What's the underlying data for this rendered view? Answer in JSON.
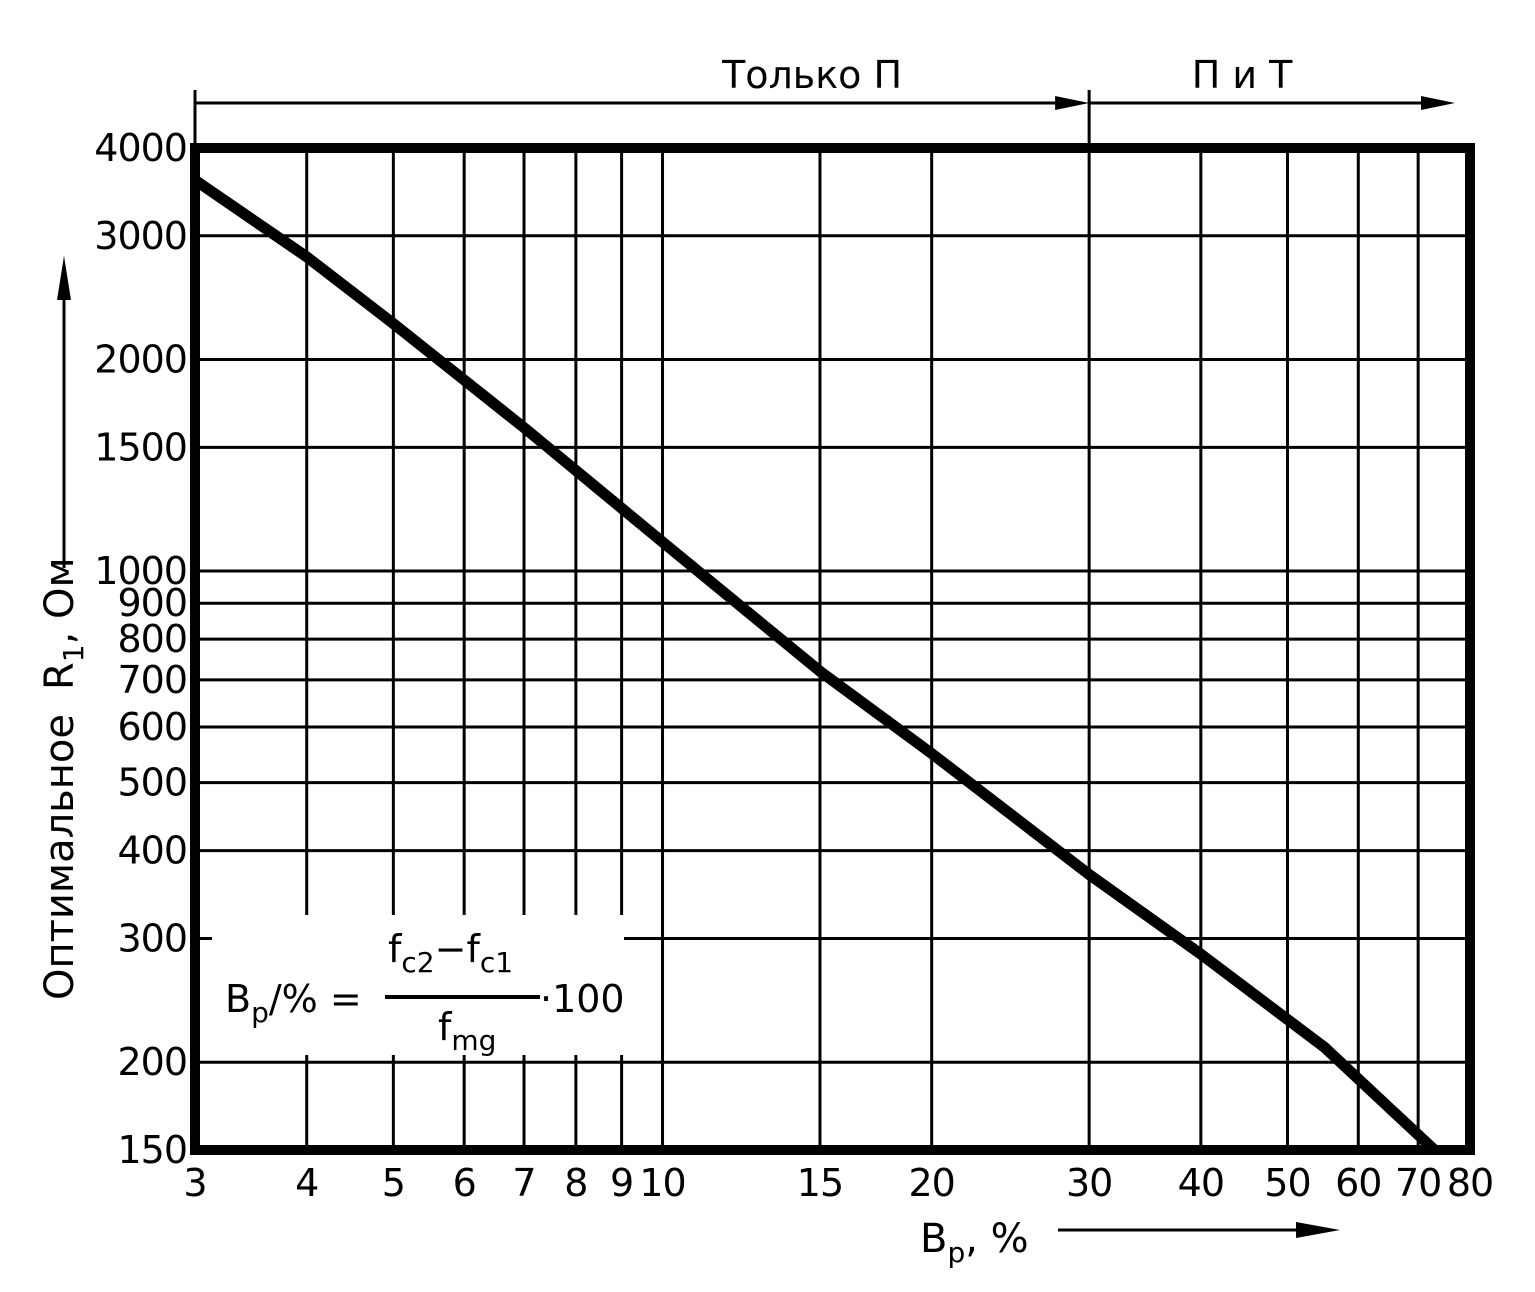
{
  "chart_data": {
    "type": "line",
    "x_scale": "log",
    "y_scale": "log",
    "xlim": [
      3,
      80
    ],
    "ylim": [
      150,
      4000
    ],
    "x_ticks": [
      3,
      4,
      5,
      6,
      7,
      8,
      9,
      10,
      15,
      20,
      30,
      40,
      50,
      60,
      70,
      80
    ],
    "y_ticks": [
      4000,
      3000,
      2000,
      1500,
      1000,
      900,
      800,
      700,
      600,
      500,
      400,
      300,
      200,
      150
    ],
    "x_tick_labels": [
      "3",
      "4",
      "5",
      "6",
      "7",
      "8",
      "9",
      "10",
      "15",
      "20",
      "30",
      "40",
      "50",
      "60",
      "70",
      "80"
    ],
    "y_tick_labels": [
      "4000",
      "3000",
      "2000",
      "1500",
      "1000",
      "900",
      "800",
      "700",
      "600",
      "500",
      "400",
      "300",
      "200",
      "150"
    ],
    "grid": true,
    "series": [
      {
        "x": [
          3,
          4,
          5,
          7,
          10,
          15,
          20,
          30,
          40,
          55,
          73
        ],
        "y": [
          3600,
          2800,
          2250,
          1600,
          1100,
          720,
          550,
          370,
          285,
          210,
          150
        ]
      }
    ],
    "ylabel_prefix": "Оптимальное",
    "ylabel_var": "R",
    "ylabel_sub": "1",
    "ylabel_unit": "Ом",
    "xlabel_var": "B",
    "xlabel_sub": "p",
    "xlabel_unit": "%",
    "regions": [
      {
        "label": "Только П",
        "x_from": 3,
        "x_to": 30
      },
      {
        "label": "П и Т",
        "x_from": 30,
        "x_to": 80
      }
    ],
    "formula": {
      "lhs": "B",
      "lhs_sub": "p",
      "lhs_tail": "/% =",
      "num_a": "f",
      "num_a_sub": "c2",
      "minus": "−",
      "num_b": "f",
      "num_b_sub": "c1",
      "den": "f",
      "den_sub": "mg",
      "factor": "·100"
    }
  }
}
